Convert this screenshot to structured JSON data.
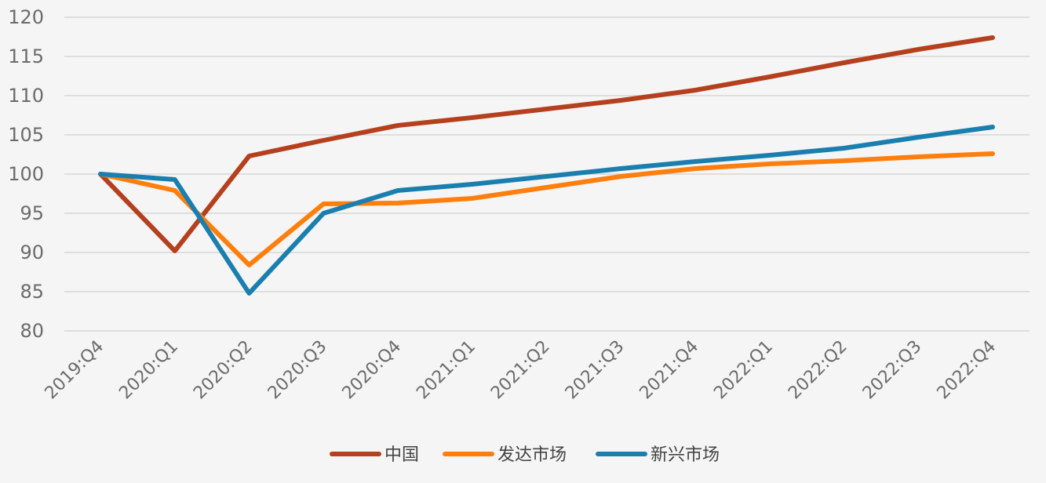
{
  "chart_data": {
    "type": "line",
    "title": "",
    "xlabel": "",
    "ylabel": "",
    "categories": [
      "2019:Q4",
      "2020:Q1",
      "2020:Q2",
      "2020:Q3",
      "2020:Q4",
      "2021:Q1",
      "2021:Q2",
      "2021:Q3",
      "2021:Q4",
      "2022:Q1",
      "2022:Q2",
      "2022:Q3",
      "2022:Q4"
    ],
    "ylim": [
      80,
      120
    ],
    "yticks": [
      80,
      85,
      90,
      95,
      100,
      105,
      110,
      115,
      120
    ],
    "grid": true,
    "legend_position": "bottom-center",
    "series": [
      {
        "name": "中国",
        "color": "#b5401e",
        "values": [
          100,
          90.2,
          102.3,
          104.3,
          106.2,
          107.2,
          108.3,
          109.4,
          110.7,
          112.4,
          114.2,
          115.9,
          117.4
        ]
      },
      {
        "name": "发达市场",
        "color": "#ff7f0e",
        "values": [
          100,
          97.9,
          88.4,
          96.2,
          96.3,
          96.9,
          98.3,
          99.7,
          100.7,
          101.3,
          101.7,
          102.2,
          102.6
        ]
      },
      {
        "name": "新兴市场",
        "color": "#1a7fae",
        "values": [
          100,
          99.3,
          84.8,
          95.0,
          97.9,
          98.7,
          99.7,
          100.7,
          101.6,
          102.4,
          103.3,
          104.7,
          106.0
        ]
      }
    ]
  }
}
